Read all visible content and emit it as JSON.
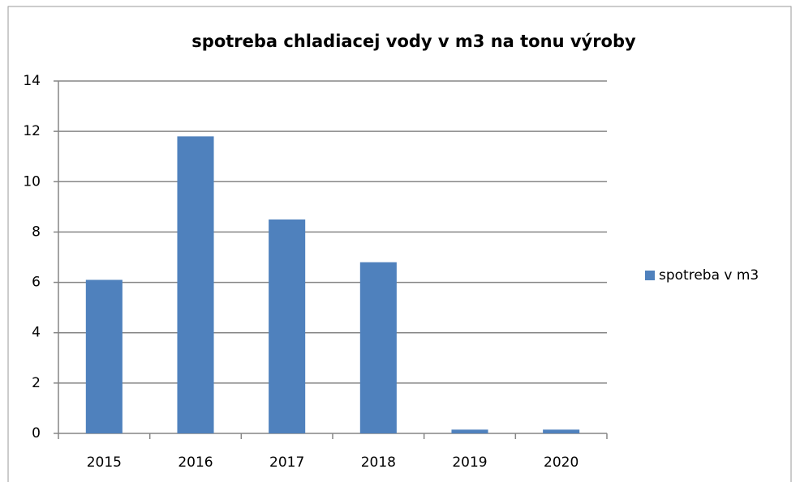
{
  "chart_data": {
    "type": "bar",
    "title": "spotreba chladiacej vody v m3 na tonu výroby",
    "categories": [
      "2015",
      "2016",
      "2017",
      "2018",
      "2019",
      "2020"
    ],
    "series": [
      {
        "name": "spotreba v m3",
        "color": "#4f81bd",
        "values": [
          6.1,
          11.8,
          8.5,
          6.8,
          0.15,
          0.15
        ]
      }
    ],
    "ylim": [
      0,
      14
    ],
    "yticks": [
      0,
      2,
      4,
      6,
      8,
      10,
      12,
      14
    ],
    "grid": true,
    "legend": "right"
  }
}
